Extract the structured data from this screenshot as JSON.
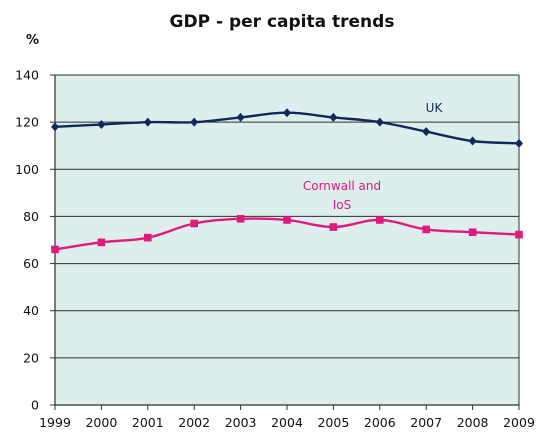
{
  "chart_data": {
    "type": "line",
    "title": "GDP - per capita trends",
    "ylabel": "%",
    "xlabel": "",
    "ylim": [
      0,
      140
    ],
    "yticks": [
      0,
      20,
      40,
      60,
      80,
      100,
      120,
      140
    ],
    "x": [
      1999,
      2000,
      2001,
      2002,
      2003,
      2004,
      2005,
      2006,
      2007,
      2008,
      2009
    ],
    "grid": true,
    "plot_background": "#ddeeed",
    "series": [
      {
        "name": "UK",
        "label_lines": [
          "UK"
        ],
        "color": "#0d2a5a",
        "marker": "diamond",
        "values": [
          118,
          119,
          120,
          120,
          122,
          124,
          122,
          120,
          116,
          112,
          111
        ]
      },
      {
        "name": "Cornwall and IoS",
        "label_lines": [
          "Cornwall and",
          "IoS"
        ],
        "color": "#e0197d",
        "marker": "square",
        "values": [
          66,
          69,
          71,
          77,
          79,
          78.5,
          75.5,
          78.5,
          74.5,
          73.3,
          72.3
        ]
      }
    ]
  }
}
